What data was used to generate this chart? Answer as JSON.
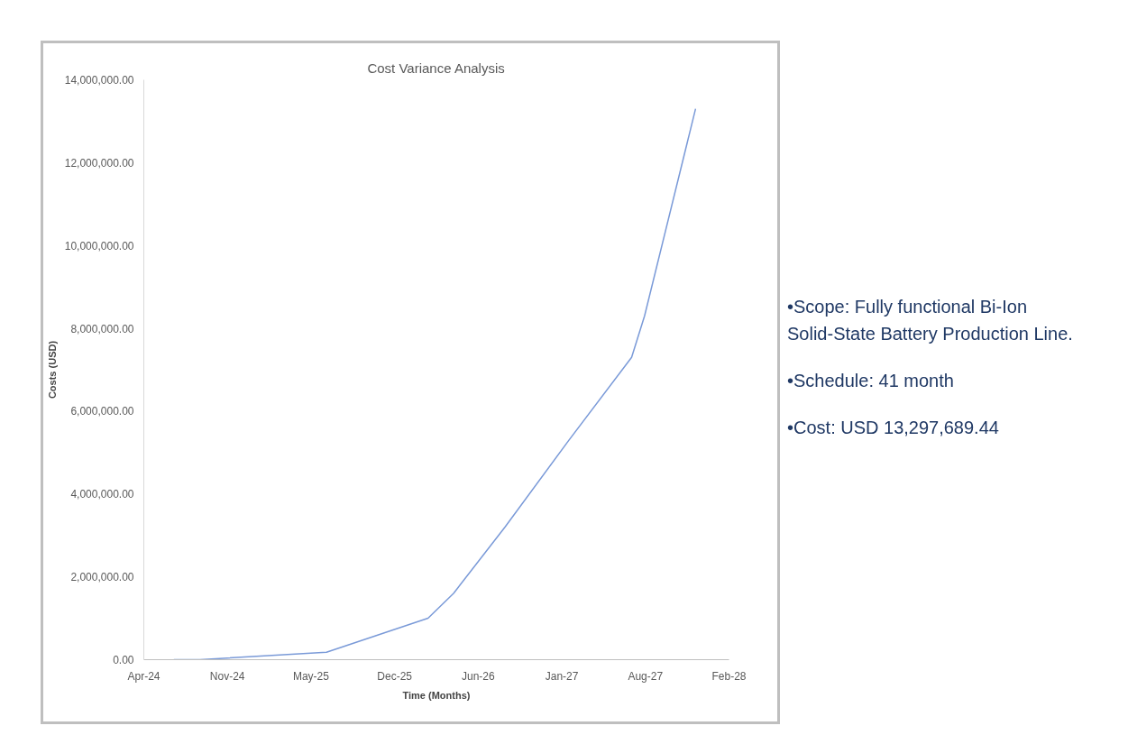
{
  "chart_data": {
    "type": "line",
    "title": "Cost Variance Analysis",
    "xlabel": "Time (Months)",
    "ylabel": "Costs (USD)",
    "x": [
      "2024-07-01",
      "2024-09-01",
      "2025-07-01",
      "2026-03-01",
      "2026-05-01",
      "2026-09-01",
      "2027-02-01",
      "2027-07-01",
      "2027-08-01",
      "2027-12-01"
    ],
    "series": [
      {
        "color": "#7a9ad8",
        "values": [
          0,
          0,
          180000,
          1000000,
          1600000,
          3200000,
          5300000,
          7300000,
          8300000,
          13300000
        ]
      }
    ],
    "xlim": [
      "2024-04-20",
      "2028-02-19"
    ],
    "xticks": [
      {
        "value": "2024-04-20",
        "label": "Apr-24"
      },
      {
        "value": "2024-11-06",
        "label": "Nov-24"
      },
      {
        "value": "2025-05-25",
        "label": "May-25"
      },
      {
        "value": "2025-12-11",
        "label": "Dec-25"
      },
      {
        "value": "2026-06-29",
        "label": "Jun-26"
      },
      {
        "value": "2027-01-15",
        "label": "Jan-27"
      },
      {
        "value": "2027-08-03",
        "label": "Aug-27"
      },
      {
        "value": "2028-02-19",
        "label": "Feb-28"
      }
    ],
    "ylim": [
      0,
      14000000
    ],
    "yticks": [
      {
        "value": 0,
        "label": "0.00"
      },
      {
        "value": 2000000,
        "label": "2,000,000.00"
      },
      {
        "value": 4000000,
        "label": "4,000,000.00"
      },
      {
        "value": 6000000,
        "label": "6,000,000.00"
      },
      {
        "value": 8000000,
        "label": "8,000,000.00"
      },
      {
        "value": 10000000,
        "label": "10,000,000.00"
      },
      {
        "value": 12000000,
        "label": "12,000,000.00"
      },
      {
        "value": 14000000,
        "label": "14,000,000.00"
      }
    ],
    "grid": false,
    "marker": "none",
    "line_style": "solid",
    "annotations": [
      "•Scope: Fully functional Bi-Ion Solid-State Battery Production Line.",
      "•Schedule: 41 month",
      "•Cost: USD 13,297,689.44"
    ]
  }
}
